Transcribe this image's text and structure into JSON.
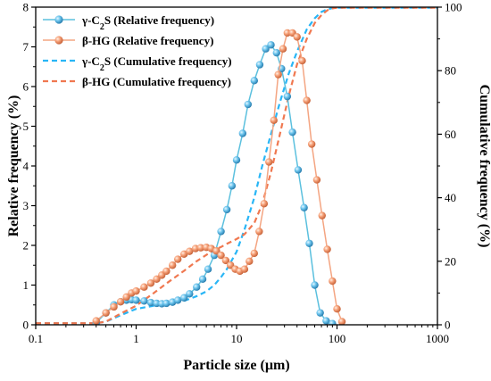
{
  "chart_data": {
    "type": "line",
    "xlabel": "Particle size (µm)",
    "ylabel": "Relative frequency (%)",
    "y2label": "Cumulative frequency (%)",
    "xscale": "log",
    "xlim": [
      0.1,
      1000
    ],
    "ylim": [
      0,
      8
    ],
    "y2lim": [
      0,
      100
    ],
    "x_ticks": [
      0.1,
      1,
      10,
      100,
      1000
    ],
    "x_tick_labels": [
      "0.1",
      "1",
      "10",
      "100",
      "1000"
    ],
    "y_ticks": [
      0,
      1,
      2,
      3,
      4,
      5,
      6,
      7,
      8
    ],
    "y_tick_labels": [
      "0",
      "1",
      "2",
      "3",
      "4",
      "5",
      "6",
      "7",
      "8"
    ],
    "y2_ticks": [
      0,
      20,
      40,
      60,
      80,
      100
    ],
    "y2_tick_labels": [
      "0",
      "20",
      "40",
      "60",
      "80",
      "100"
    ],
    "legend_position": "top-left",
    "series": [
      {
        "name": "γ-C2S (Relative frequency)",
        "legend_parts": [
          "γ-C",
          "2",
          "S (Relative frequency)"
        ],
        "axis": "left",
        "style": "line-marker",
        "color": "#5bc0de",
        "x": [
          0.4,
          0.5,
          0.6,
          0.7,
          0.8,
          0.9,
          1.0,
          1.2,
          1.4,
          1.6,
          1.8,
          2.0,
          2.3,
          2.6,
          3.0,
          3.4,
          4.0,
          4.6,
          5.2,
          6.0,
          7.0,
          8.0,
          9.0,
          10.0,
          11.5,
          13.0,
          15.0,
          17.0,
          19.5,
          22.0,
          25.0,
          28.0,
          32.0,
          36.0,
          41.0,
          47.0,
          53.0,
          60.0,
          68.0,
          78.0,
          90.0
        ],
        "y": [
          0.05,
          0.3,
          0.5,
          0.58,
          0.62,
          0.63,
          0.62,
          0.6,
          0.56,
          0.54,
          0.53,
          0.54,
          0.57,
          0.62,
          0.68,
          0.78,
          0.95,
          1.15,
          1.4,
          1.75,
          2.35,
          2.9,
          3.5,
          4.15,
          4.82,
          5.55,
          6.15,
          6.55,
          6.95,
          7.05,
          6.85,
          6.45,
          5.75,
          4.85,
          3.9,
          2.95,
          2.05,
          1.0,
          0.3,
          0.1,
          0.03
        ]
      },
      {
        "name": "β-HG (Relative frequency)",
        "axis": "left",
        "style": "line-marker",
        "color": "#f4a582",
        "x": [
          0.4,
          0.5,
          0.6,
          0.7,
          0.8,
          0.9,
          1.0,
          1.2,
          1.4,
          1.6,
          1.8,
          2.0,
          2.3,
          2.6,
          3.0,
          3.4,
          3.9,
          4.4,
          5.0,
          5.6,
          6.3,
          7.0,
          7.8,
          8.7,
          9.7,
          10.8,
          12.0,
          13.4,
          15.0,
          16.8,
          18.8,
          21.0,
          23.5,
          26.0,
          29.0,
          32.0,
          36.0,
          40.0,
          45.0,
          50.0,
          56.0,
          63.0,
          71.0,
          80.0,
          90.0,
          100.0,
          112.0
        ],
        "y": [
          0.1,
          0.3,
          0.45,
          0.58,
          0.7,
          0.8,
          0.85,
          0.95,
          1.05,
          1.15,
          1.25,
          1.35,
          1.5,
          1.65,
          1.78,
          1.85,
          1.92,
          1.94,
          1.95,
          1.92,
          1.86,
          1.75,
          1.62,
          1.5,
          1.4,
          1.35,
          1.4,
          1.6,
          1.8,
          2.35,
          3.05,
          4.1,
          5.15,
          6.3,
          6.95,
          7.35,
          7.35,
          7.25,
          6.65,
          5.65,
          4.55,
          3.65,
          2.75,
          1.9,
          1.1,
          0.4,
          0.08
        ]
      },
      {
        "name": "γ-C2S (Cumulative frequency)",
        "legend_parts": [
          "γ-C",
          "2",
          "S (Cumulative frequency)"
        ],
        "axis": "right",
        "style": "dashed",
        "color": "#29b6f6",
        "x": [
          0.1,
          0.4,
          0.5,
          0.7,
          1.0,
          1.5,
          2.0,
          3.0,
          4.0,
          5.0,
          6.0,
          7.0,
          8.0,
          10.0,
          12.0,
          15.0,
          18.0,
          22.0,
          27.0,
          33.0,
          40.0,
          50.0,
          60.0,
          70.0,
          80.0,
          90.0,
          100.0,
          1000.0
        ],
        "y": [
          0.5,
          0.5,
          1.0,
          3.0,
          5.0,
          6.0,
          6.5,
          7.5,
          9.0,
          10.5,
          12.5,
          15.0,
          17.5,
          23.0,
          30.0,
          40.0,
          50.0,
          60.0,
          70.0,
          79.0,
          86.0,
          93.0,
          96.5,
          98.5,
          99.3,
          99.7,
          99.8,
          99.8
        ]
      },
      {
        "name": "β-HG (Cumulative frequency)",
        "axis": "right",
        "style": "dashed",
        "color": "#f07850",
        "x": [
          0.1,
          0.4,
          0.5,
          0.7,
          1.0,
          1.5,
          2.0,
          3.0,
          4.0,
          5.0,
          6.0,
          7.0,
          8.0,
          10.0,
          12.0,
          15.0,
          18.0,
          22.0,
          27.0,
          33.0,
          40.0,
          50.0,
          60.0,
          70.0,
          80.0,
          90.0,
          100.0,
          1000.0
        ],
        "y": [
          0.5,
          0.5,
          1.0,
          3.5,
          6.0,
          10.0,
          13.0,
          17.0,
          20.0,
          22.0,
          23.5,
          24.5,
          25.5,
          27.0,
          28.5,
          32.0,
          38.0,
          48.0,
          60.0,
          72.0,
          82.0,
          90.0,
          95.0,
          97.5,
          99.0,
          99.6,
          99.8,
          99.8
        ]
      }
    ]
  }
}
